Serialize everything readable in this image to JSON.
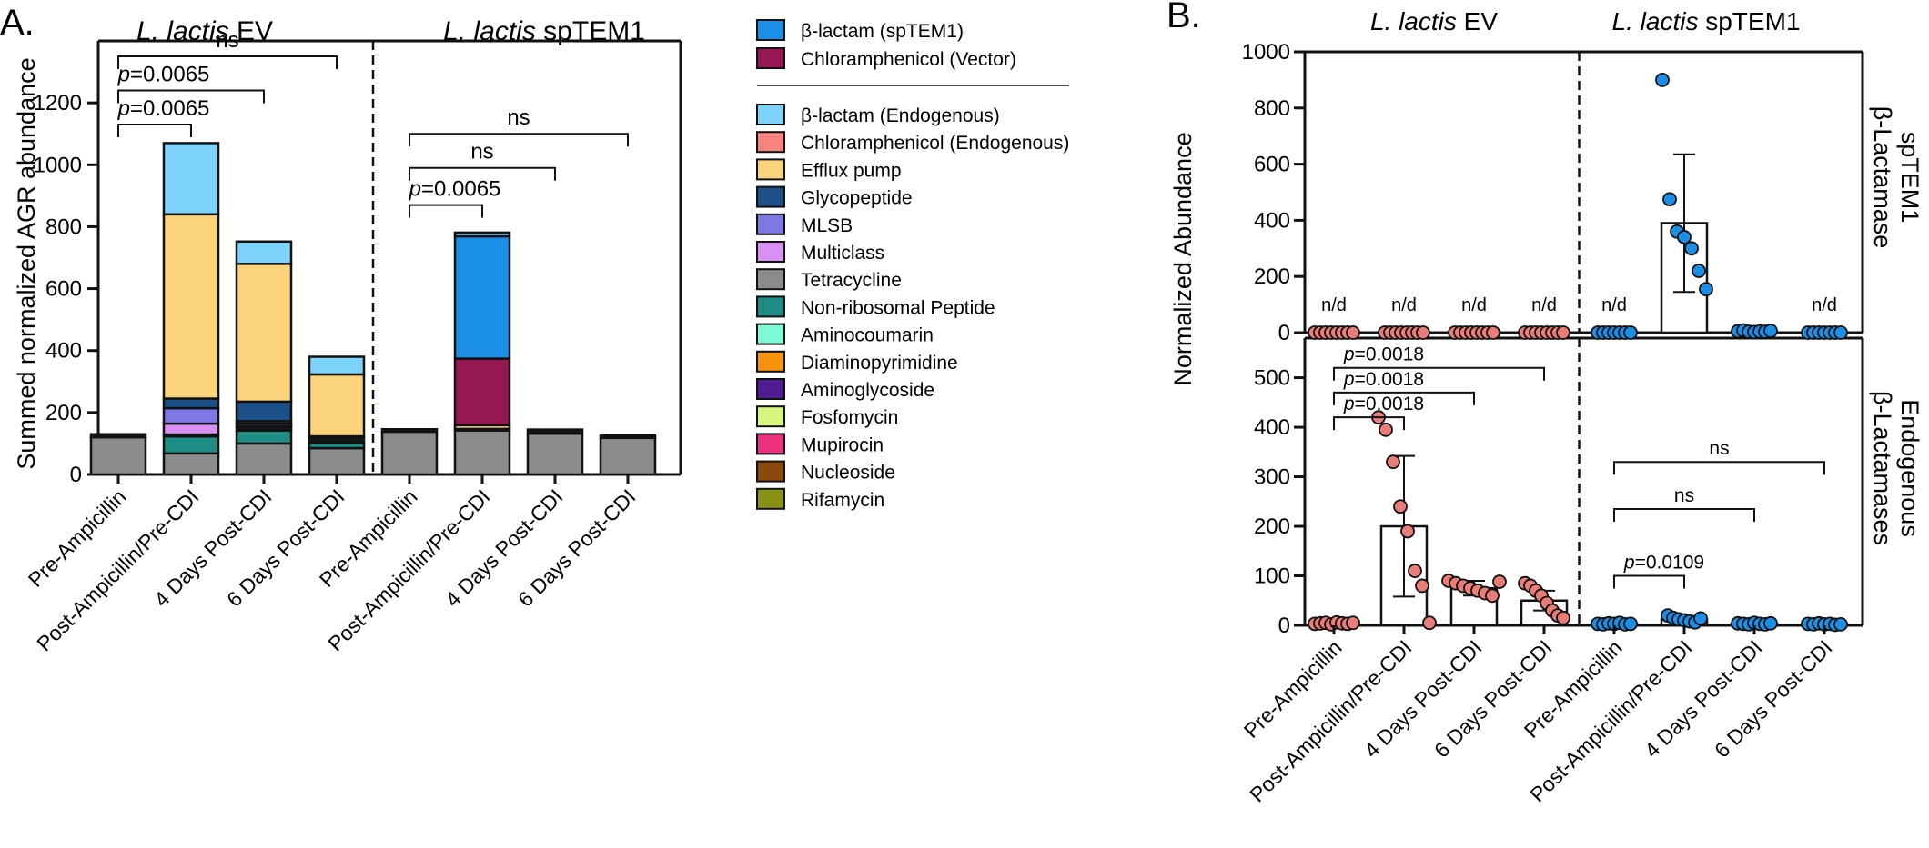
{
  "colors": {
    "ev": "#EA7D78",
    "sptem1": "#1B8FE8",
    "axis": "#111111",
    "bar_fill": "#ffffff",
    "dot_stroke": "#111111"
  },
  "chart_data": [
    {
      "type": "bar",
      "subtype": "stacked",
      "panel_label": "A.",
      "group_headers": [
        {
          "italic": "L. lactis",
          "rest": " EV",
          "color": "#EA7D78"
        },
        {
          "italic": "L. lactis",
          "rest": " spTEM1",
          "color": "#1B8FE8"
        }
      ],
      "ylabel": "Summed normalized AGR abundance",
      "ylim": [
        0,
        1400
      ],
      "yticks": [
        0,
        200,
        400,
        600,
        800,
        1000,
        1200
      ],
      "categories": [
        "Pre-Ampicillin",
        "Post-Ampicillin/Pre-CDI",
        "4 Days Post-CDI",
        "6 Days Post-CDI",
        "Pre-Ampicillin",
        "Post-Ampicillin/Pre-CDI",
        "4 Days Post-CDI",
        "6 Days Post-CDI"
      ],
      "series": [
        {
          "name": "Tetracycline",
          "color": "#8C8C8C",
          "values": [
            120,
            68,
            100,
            85,
            138,
            142,
            132,
            118
          ]
        },
        {
          "name": "Non-ribosomal Peptide",
          "color": "#1F8C86",
          "values": [
            0,
            55,
            42,
            18,
            0,
            0,
            0,
            0
          ]
        },
        {
          "name": "Rifamycin",
          "color": "#12171C",
          "values": [
            10,
            6,
            14,
            20,
            8,
            5,
            13,
            8
          ]
        },
        {
          "name": "Multiclass",
          "color": "#D890F3",
          "values": [
            0,
            35,
            8,
            0,
            0,
            0,
            0,
            0
          ]
        },
        {
          "name": "MLSB",
          "color": "#7E78E5",
          "values": [
            0,
            50,
            8,
            0,
            0,
            0,
            0,
            0
          ]
        },
        {
          "name": "Glycopeptide",
          "color": "#1D5088",
          "values": [
            0,
            31,
            63,
            0,
            0,
            0,
            0,
            0
          ]
        },
        {
          "name": "Efflux pump",
          "color": "#FBD37B",
          "values": [
            0,
            595,
            445,
            200,
            0,
            12,
            0,
            0
          ]
        },
        {
          "name": "Chloramphenicol (Vector)",
          "color": "#961752",
          "values": [
            0,
            0,
            0,
            0,
            0,
            215,
            0,
            0
          ]
        },
        {
          "name": "β-lactam (spTEM1)",
          "color": "#1B8FE8",
          "values": [
            0,
            0,
            0,
            0,
            0,
            395,
            0,
            0
          ]
        },
        {
          "name": "β-lactam (Endogenous)",
          "color": "#7DD3FB",
          "values": [
            0,
            230,
            72,
            57,
            0,
            12,
            0,
            0
          ]
        }
      ],
      "legend": {
        "vector_items": [
          {
            "label": "β-lactam (spTEM1)",
            "color": "#1B8FE8"
          },
          {
            "label": "Chloramphenicol (Vector)",
            "color": "#961752"
          }
        ],
        "endogenous_items": [
          {
            "label": "β-lactam (Endogenous)",
            "color": "#7DD3FB"
          },
          {
            "label": "Chloramphenicol (Endogenous)",
            "color": "#F7847C"
          },
          {
            "label": "Efflux pump",
            "color": "#FBD37B"
          },
          {
            "label": "Glycopeptide",
            "color": "#1D5088"
          },
          {
            "label": "MLSB",
            "color": "#7E78E5"
          },
          {
            "label": "Multiclass",
            "color": "#D890F3"
          },
          {
            "label": "Tetracycline",
            "color": "#8C8C8C"
          },
          {
            "label": "Non-ribosomal Peptide",
            "color": "#1F8C86"
          },
          {
            "label": "Aminocoumarin",
            "color": "#7DFBD7"
          },
          {
            "label": "Diaminopyrimidine",
            "color": "#F7940E"
          },
          {
            "label": "Aminoglycoside",
            "color": "#4F1C94"
          },
          {
            "label": "Fosfomycin",
            "color": "#D8F580"
          },
          {
            "label": "Mupirocin",
            "color": "#EF2F7F"
          },
          {
            "label": "Nucleoside",
            "color": "#8B4A0C"
          },
          {
            "label": "Rifamycin",
            "color": "#8A9215"
          }
        ]
      },
      "significance": [
        {
          "group": 0,
          "from": 0,
          "to": 1,
          "y": 1130,
          "label": "p=0.0065",
          "pval": "=0.0065"
        },
        {
          "group": 0,
          "from": 0,
          "to": 2,
          "y": 1240,
          "label": "p=0.0065",
          "pval": "=0.0065"
        },
        {
          "group": 0,
          "from": 0,
          "to": 3,
          "y": 1350,
          "label": "ns",
          "pval": ""
        },
        {
          "group": 1,
          "from": 4,
          "to": 5,
          "y": 870,
          "label": "p=0.0065",
          "pval": "=0.0065"
        },
        {
          "group": 1,
          "from": 4,
          "to": 6,
          "y": 990,
          "label": "ns",
          "pval": ""
        },
        {
          "group": 1,
          "from": 4,
          "to": 7,
          "y": 1100,
          "label": "ns",
          "pval": ""
        }
      ]
    },
    {
      "type": "scatter",
      "subtype": "bar-with-points",
      "panel_label": "B.",
      "group_headers": [
        {
          "italic": "L. lactis",
          "rest": " EV",
          "color": "#EA7D78"
        },
        {
          "italic": "L. lactis",
          "rest": " spTEM1",
          "color": "#1B8FE8"
        }
      ],
      "ylabel": "Normalized Abundance",
      "categories": [
        "Pre-Ampicillin",
        "Post-Ampicillin/Pre-CDI",
        "4 Days Post-CDI",
        "6 Days Post-CDI",
        "Pre-Ampicillin",
        "Post-Ampicillin/Pre-CDI",
        "4 Days Post-CDI",
        "6 Days Post-CDI"
      ],
      "panels": [
        {
          "row_label": [
            "spTEM1",
            "β-Lactamase"
          ],
          "ylim": [
            0,
            1000
          ],
          "yticks": [
            0,
            200,
            400,
            600,
            800,
            1000
          ],
          "means": [
            0,
            0,
            0,
            0,
            0,
            390,
            0,
            0
          ],
          "sd": [
            0,
            0,
            0,
            0,
            0,
            245,
            0,
            0
          ],
          "nd_label": "n/d",
          "nd": [
            true,
            true,
            true,
            true,
            true,
            false,
            false,
            true
          ],
          "points": [
            [
              0,
              0,
              0,
              0,
              0,
              0,
              0,
              0
            ],
            [
              0,
              0,
              0,
              0,
              0,
              0,
              0,
              0
            ],
            [
              0,
              0,
              0,
              0,
              0,
              0,
              0,
              0
            ],
            [
              0,
              0,
              0,
              0,
              0,
              0,
              0,
              0
            ],
            [
              0,
              0,
              0,
              0,
              0,
              0,
              0
            ],
            [
              900,
              475,
              360,
              340,
              300,
              220,
              155
            ],
            [
              5,
              8,
              3,
              2,
              4,
              3,
              6
            ],
            [
              0,
              0,
              0,
              0,
              0,
              0,
              0
            ]
          ],
          "significance": []
        },
        {
          "row_label": [
            "Endogenous",
            "β-Lactamases"
          ],
          "ylim": [
            0,
            580
          ],
          "yticks": [
            0,
            100,
            200,
            300,
            400,
            500
          ],
          "means": [
            4,
            200,
            75,
            50,
            3,
            12,
            3,
            2
          ],
          "sd": [
            0,
            142,
            15,
            20,
            0,
            4,
            0,
            0
          ],
          "nd_label": "n/d",
          "nd": [
            false,
            false,
            false,
            false,
            false,
            false,
            false,
            false
          ],
          "points": [
            [
              3,
              4,
              5,
              2,
              6,
              4,
              3,
              5
            ],
            [
              420,
              395,
              330,
              240,
              190,
              110,
              80,
              5
            ],
            [
              90,
              85,
              80,
              75,
              70,
              65,
              60,
              88
            ],
            [
              85,
              80,
              70,
              60,
              45,
              30,
              20,
              15
            ],
            [
              3,
              2,
              4,
              3,
              5,
              2,
              3
            ],
            [
              20,
              15,
              12,
              10,
              8,
              6,
              14
            ],
            [
              4,
              3,
              2,
              5,
              3,
              2,
              4
            ],
            [
              3,
              2,
              4,
              2,
              3,
              1,
              2
            ]
          ],
          "significance": [
            {
              "from": 0,
              "to": 1,
              "y": 420,
              "label": "p=0.0018"
            },
            {
              "from": 0,
              "to": 2,
              "y": 470,
              "label": "p=0.0018"
            },
            {
              "from": 0,
              "to": 3,
              "y": 520,
              "label": "p=0.0018"
            },
            {
              "from": 4,
              "to": 5,
              "y": 100,
              "label": "p=0.0109"
            },
            {
              "from": 4,
              "to": 6,
              "y": 235,
              "label": "ns"
            },
            {
              "from": 4,
              "to": 7,
              "y": 330,
              "label": "ns"
            }
          ]
        }
      ]
    }
  ]
}
